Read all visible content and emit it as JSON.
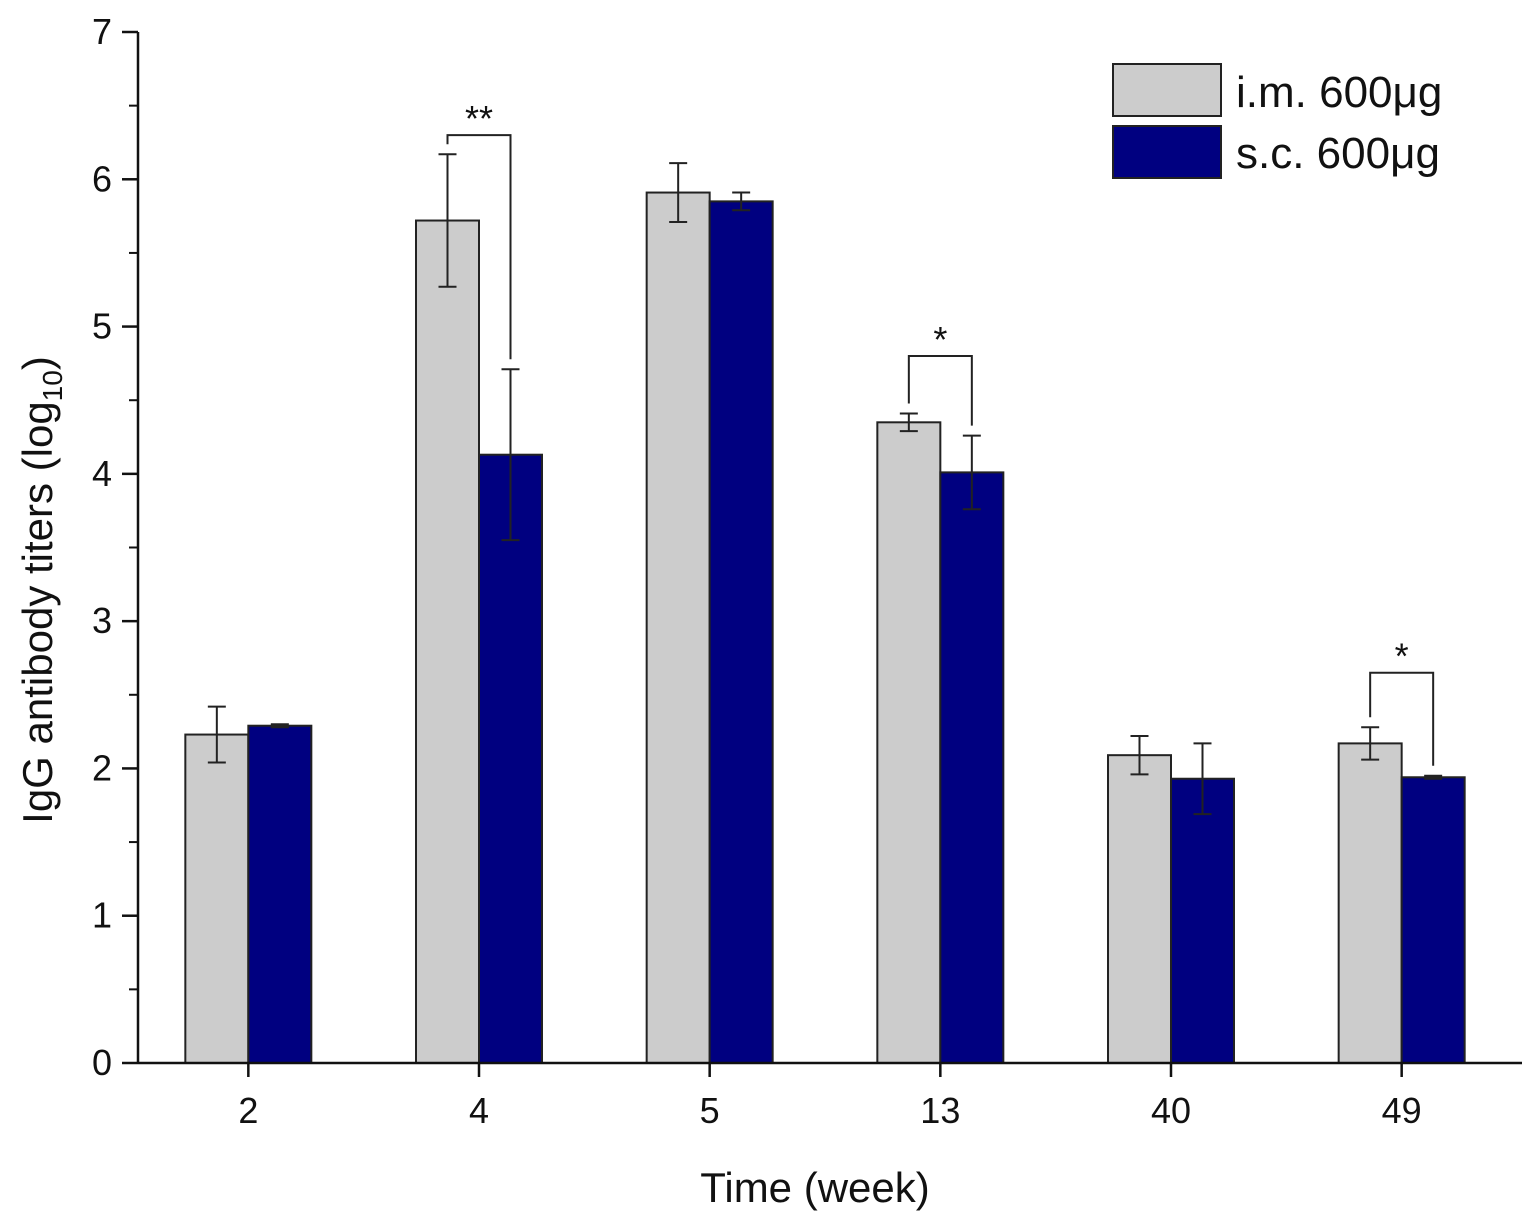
{
  "chart_data": {
    "type": "bar",
    "title": "",
    "xlabel": "Time (week)",
    "ylabel_main": "IgG antibody titers (log",
    "ylabel_sub": "10",
    "ylabel_close": ")",
    "ylim": [
      0,
      7
    ],
    "yticks": [
      "0",
      "1",
      "2",
      "3",
      "4",
      "5",
      "6",
      "7"
    ],
    "categories": [
      "2",
      "4",
      "5",
      "13",
      "40",
      "49"
    ],
    "legend_position": "top-right",
    "series": [
      {
        "name": "i.m. 600μg",
        "color": "#cccccc",
        "values": [
          2.23,
          5.72,
          5.91,
          4.35,
          2.09,
          2.17
        ],
        "errors": [
          0.19,
          0.45,
          0.2,
          0.06,
          0.13,
          0.11
        ]
      },
      {
        "name": "s.c. 600μg",
        "color": "#000080",
        "values": [
          2.29,
          4.13,
          5.85,
          4.01,
          1.93,
          1.94
        ],
        "errors": [
          0.01,
          0.58,
          0.06,
          0.25,
          0.24,
          0.01
        ]
      }
    ],
    "significance": [
      {
        "category": "4",
        "label": "**",
        "bracket_y": 6.3
      },
      {
        "category": "13",
        "label": "*",
        "bracket_y": 4.8
      },
      {
        "category": "49",
        "label": "*",
        "bracket_y": 2.65
      }
    ]
  }
}
